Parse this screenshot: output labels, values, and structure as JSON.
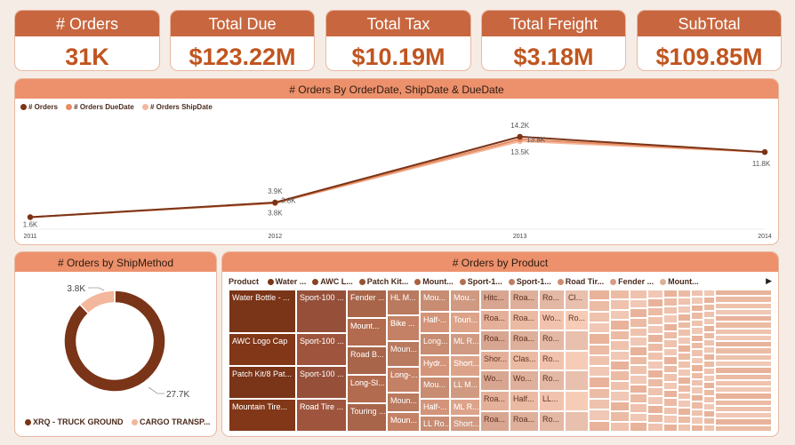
{
  "kpis": [
    {
      "label": "# Orders",
      "value": "31K"
    },
    {
      "label": "Total Due",
      "value": "$123.22M"
    },
    {
      "label": "Total Tax",
      "value": "$10.19M"
    },
    {
      "label": "Total Freight",
      "value": "$3.18M"
    },
    {
      "label": "SubTotal",
      "value": "$109.85M"
    }
  ],
  "colors": {
    "dark": "#7a3417",
    "mid": "#e88c62",
    "light": "#f3b79b",
    "header": "#c8673f"
  },
  "line_panel": {
    "title": "# Orders By OrderDate, ShipDate & DueDate"
  },
  "donut_panel": {
    "title": "# Orders by ShipMethod"
  },
  "treemap_panel": {
    "title": "# Orders by Product"
  },
  "chart_data": [
    {
      "type": "line",
      "title": "# Orders By OrderDate, ShipDate & DueDate",
      "x": [
        2011,
        2012,
        2013,
        2014
      ],
      "ylim": [
        0,
        16000
      ],
      "series": [
        {
          "name": "# Orders",
          "values": [
            1600,
            3900,
            14200,
            11800
          ],
          "labels": [
            "1.6K",
            "3.9K",
            "14.2K",
            "11.8K"
          ],
          "color": "#7a3417"
        },
        {
          "name": "# Orders DueDate",
          "values": [
            1600,
            3800,
            13800,
            11800
          ],
          "labels": [
            "",
            "3.8K",
            "13.8K",
            ""
          ],
          "color": "#e88c62"
        },
        {
          "name": "# Orders ShipDate",
          "values": [
            1600,
            3800,
            13500,
            11800
          ],
          "labels": [
            "",
            "3.8K",
            "13.5K",
            ""
          ],
          "color": "#f3b79b"
        }
      ]
    },
    {
      "type": "pie",
      "donut": true,
      "title": "# Orders by ShipMethod",
      "categories": [
        "XRQ - TRUCK GROUND",
        "CARGO TRANSP..."
      ],
      "values": [
        27700,
        3800
      ],
      "labels": [
        "27.7K",
        "3.8K"
      ],
      "colors": [
        "#7a3417",
        "#f3b79b"
      ]
    },
    {
      "type": "treemap",
      "title": "# Orders by Product",
      "legend_title": "Product",
      "legend": [
        "Water ...",
        "AWC L...",
        "Patch Kit...",
        "Mount...",
        "Sport-1...",
        "Sport-1...",
        "Road Tir...",
        "Fender ...",
        "Mount..."
      ],
      "columns": [
        [
          {
            "label": "Water Bottle - ...",
            "value": 4
          },
          {
            "label": "AWC Logo Cap",
            "value": 3
          },
          {
            "label": "Patch Kit/8 Pat...",
            "value": 3
          },
          {
            "label": "Mountain Tire...",
            "value": 3
          }
        ],
        [
          {
            "label": "Sport-100 ...",
            "value": 4
          },
          {
            "label": "Sport-100 ...",
            "value": 3
          },
          {
            "label": "Sport-100 ...",
            "value": 3
          },
          {
            "label": "Road Tire ...",
            "value": 3
          }
        ],
        [
          {
            "label": "Fender ...",
            "value": 2
          },
          {
            "label": "Mount...",
            "value": 2
          },
          {
            "label": "Road B...",
            "value": 2
          },
          {
            "label": "Long-Sl...",
            "value": 2
          },
          {
            "label": "Touring ...",
            "value": 2
          }
        ],
        [
          {
            "label": "HL M...",
            "value": 2
          },
          {
            "label": "Bike ...",
            "value": 2
          },
          {
            "label": "Moun...",
            "value": 2
          },
          {
            "label": "Long-...",
            "value": 2
          },
          {
            "label": "Moun...",
            "value": 1.5
          },
          {
            "label": "Moun...",
            "value": 1.5
          }
        ],
        [
          {
            "label": "Mou...",
            "value": 2
          },
          {
            "label": "Half-...",
            "value": 2
          },
          {
            "label": "Long...",
            "value": 2
          },
          {
            "label": "Hydr...",
            "value": 2
          },
          {
            "label": "Mou...",
            "value": 2
          },
          {
            "label": "Half-...",
            "value": 1.5
          },
          {
            "label": "LL Ro...",
            "value": 1.5
          }
        ],
        [
          {
            "label": "Mou...",
            "value": 2
          },
          {
            "label": "Touri...",
            "value": 2
          },
          {
            "label": "ML R...",
            "value": 2
          },
          {
            "label": "Short...",
            "value": 2
          },
          {
            "label": "LL M...",
            "value": 2
          },
          {
            "label": "ML R...",
            "value": 1.5
          },
          {
            "label": "Short...",
            "value": 1.5
          }
        ],
        [
          {
            "label": "Hitc...",
            "value": 2
          },
          {
            "label": "Roa...",
            "value": 2
          },
          {
            "label": "Roa...",
            "value": 2
          },
          {
            "label": "Shor...",
            "value": 2
          },
          {
            "label": "Wo...",
            "value": 2
          },
          {
            "label": "Roa...",
            "value": 2
          },
          {
            "label": "Roa...",
            "value": 2
          }
        ],
        [
          {
            "label": "Roa...",
            "value": 2
          },
          {
            "label": "Roa...",
            "value": 2
          },
          {
            "label": "Roa...",
            "value": 2
          },
          {
            "label": "Clas...",
            "value": 2
          },
          {
            "label": "Wo...",
            "value": 2
          },
          {
            "label": "Half...",
            "value": 2
          },
          {
            "label": "Roa...",
            "value": 2
          }
        ],
        [
          {
            "label": "Ro...",
            "value": 2
          },
          {
            "label": "Wo...",
            "value": 2
          },
          {
            "label": "Ro...",
            "value": 2
          },
          {
            "label": "Ro...",
            "value": 2
          },
          {
            "label": "Ro...",
            "value": 2
          },
          {
            "label": "LL...",
            "value": 2
          },
          {
            "label": "Ro...",
            "value": 2
          }
        ],
        [
          {
            "label": "Cl...",
            "value": 2
          },
          {
            "label": "Ro...",
            "value": 2
          },
          {
            "label": "",
            "value": 2
          },
          {
            "label": "",
            "value": 2
          },
          {
            "label": "",
            "value": 2
          },
          {
            "label": "",
            "value": 2
          },
          {
            "label": "",
            "value": 2
          }
        ]
      ]
    }
  ]
}
